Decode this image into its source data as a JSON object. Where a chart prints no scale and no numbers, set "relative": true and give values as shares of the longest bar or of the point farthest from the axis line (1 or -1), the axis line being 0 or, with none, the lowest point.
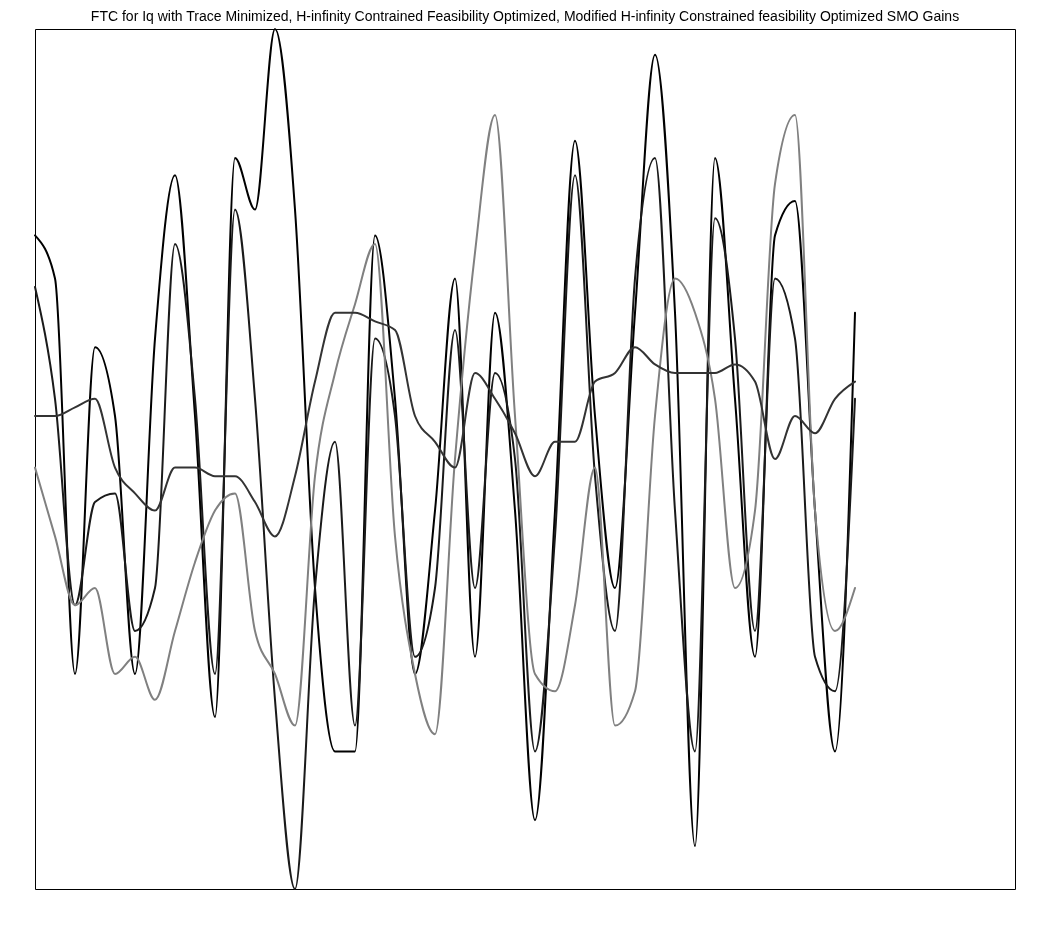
{
  "chart_data": {
    "type": "line",
    "relative": true,
    "title": "FTC for Iq with Trace Minimized, H-infinity Contrained Feasibility Optimized, Modified H-infinity Constrained feasibility Optimized SMO Gains",
    "categories": [
      null,
      null,
      null,
      null,
      null,
      null,
      null,
      null,
      null,
      null,
      null,
      null,
      null,
      null,
      null,
      null,
      null,
      null,
      null,
      null,
      null,
      null,
      null,
      null,
      null,
      null,
      null,
      null,
      null,
      null,
      null,
      null,
      null,
      null,
      null,
      null,
      null,
      null,
      null,
      null,
      null,
      null,
      null,
      null,
      null,
      null,
      null,
      null,
      null,
      null
    ],
    "series": [
      {
        "color": "#000000",
        "values": [
          0.76,
          0.71,
          0.25,
          0.63,
          0.55,
          0.25,
          0.64,
          0.83,
          0.55,
          0.2,
          0.85,
          0.79,
          1.0,
          0.79,
          0.35,
          0.16,
          0.16,
          0.76,
          0.57,
          0.25,
          0.44,
          0.71,
          0.27,
          0.67,
          0.44,
          0.08,
          0.44,
          0.87,
          0.55,
          0.35,
          0.67,
          0.97,
          0.67,
          0.05,
          0.85,
          0.57,
          0.27,
          0.76,
          0.8,
          0.44,
          0.16,
          0.67,
          null,
          null,
          null,
          null,
          null,
          null,
          null,
          null
        ]
      },
      {
        "color": "#1a1a1a",
        "values": [
          0.7,
          0.57,
          0.33,
          0.45,
          0.46,
          0.3,
          0.35,
          0.75,
          0.57,
          0.25,
          0.79,
          0.57,
          0.22,
          0,
          0.35,
          0.52,
          0.19,
          0.64,
          0.55,
          0.27,
          0.35,
          0.65,
          0.35,
          0.6,
          0.5,
          0.16,
          0.41,
          0.83,
          0.48,
          0.3,
          0.71,
          0.85,
          0.44,
          0.16,
          0.78,
          0.64,
          0.3,
          0.71,
          0.64,
          0.27,
          0.23,
          0.57,
          null,
          null,
          null,
          null,
          null,
          null,
          null,
          null
        ]
      },
      {
        "color": "#808080",
        "values": [
          0.49,
          0.41,
          0.33,
          0.35,
          0.25,
          0.27,
          0.22,
          0.3,
          0.38,
          0.44,
          0.46,
          0.3,
          0.25,
          0.19,
          0.48,
          0.6,
          0.68,
          0.75,
          0.41,
          0.25,
          0.18,
          0.5,
          0.74,
          0.9,
          0.55,
          0.25,
          0.23,
          0.33,
          0.49,
          0.19,
          0.23,
          0.55,
          0.71,
          0.67,
          0.57,
          0.35,
          0.44,
          0.82,
          0.9,
          0.44,
          0.3,
          0.35,
          null,
          null,
          null,
          null,
          null,
          null,
          null,
          null
        ]
      },
      {
        "color": "#333333",
        "values": [
          0.55,
          0.55,
          0.56,
          0.57,
          0.49,
          0.46,
          0.44,
          0.49,
          0.49,
          0.48,
          0.48,
          0.45,
          0.41,
          0.48,
          0.59,
          0.67,
          0.67,
          0.66,
          0.65,
          0.55,
          0.52,
          0.49,
          0.6,
          0.57,
          0.53,
          0.48,
          0.52,
          0.52,
          0.59,
          0.6,
          0.63,
          0.61,
          0.6,
          0.6,
          0.6,
          0.61,
          0.59,
          0.5,
          0.55,
          0.53,
          0.57,
          0.59,
          null,
          null,
          null,
          null,
          null,
          null,
          null,
          null
        ]
      }
    ]
  }
}
